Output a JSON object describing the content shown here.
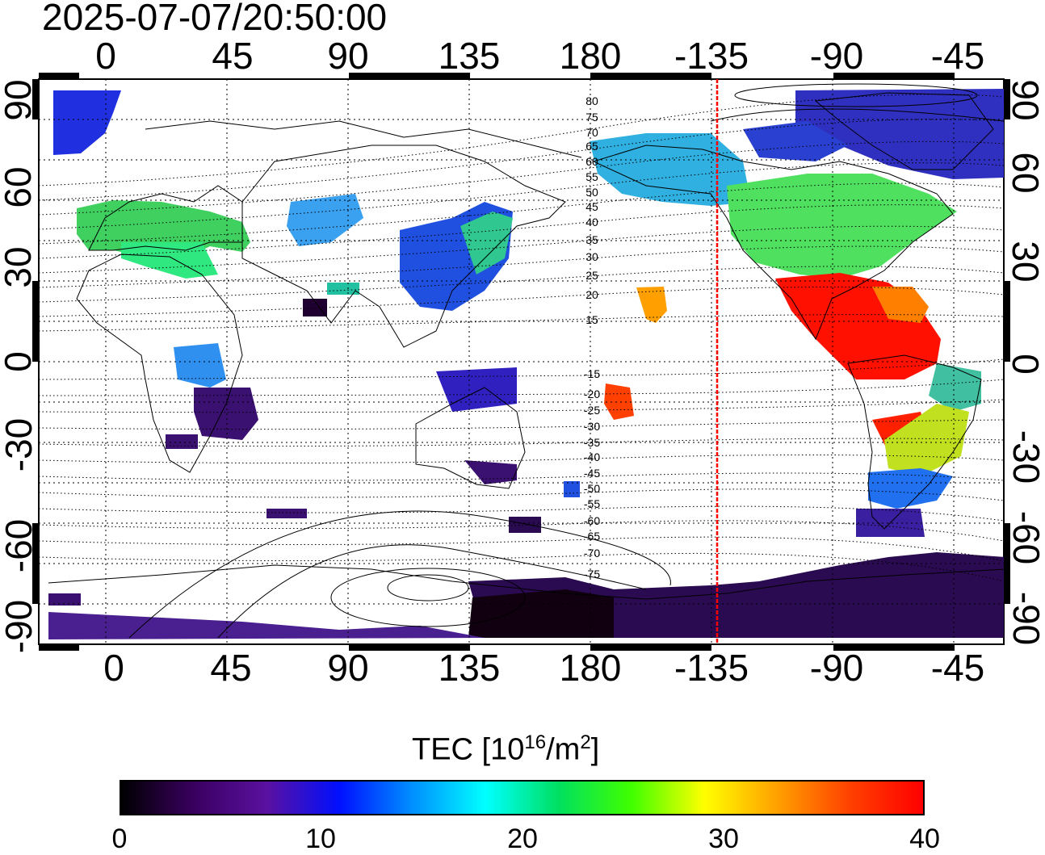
{
  "timestamp": "2025-07-07/20:50:00",
  "map": {
    "lon_ticks": [
      "0",
      "45",
      "90",
      "135",
      "180",
      "-135",
      "-90",
      "-45"
    ],
    "lat_ticks": [
      "90",
      "60",
      "30",
      "0",
      "-30",
      "-60",
      "-90"
    ],
    "mag_lat_labels_north": [
      "80",
      "75",
      "70",
      "65",
      "60",
      "55",
      "50",
      "45",
      "40",
      "35",
      "30",
      "25",
      "20",
      "15"
    ],
    "mag_lat_labels_south": [
      "-15",
      "-20",
      "-25",
      "-30",
      "-35",
      "-40",
      "-45",
      "-50",
      "-55",
      "-60",
      "-65",
      "-70",
      "-75"
    ],
    "terminator_longitude": -135,
    "terminator_color": "#ff0000"
  },
  "colorbar": {
    "title_main": "TEC  [10",
    "title_exp1": "16",
    "title_mid": "/m",
    "title_exp2": "2",
    "title_end": "]",
    "ticks": [
      "0",
      "10",
      "20",
      "30",
      "40"
    ],
    "range": [
      0,
      40
    ],
    "colormap": [
      "#000000",
      "#3a0060",
      "#5a10a0",
      "#0010ff",
      "#0090ff",
      "#00ffff",
      "#00e060",
      "#40ff00",
      "#ffff00",
      "#ffa000",
      "#ff4000",
      "#ff0000"
    ]
  }
}
